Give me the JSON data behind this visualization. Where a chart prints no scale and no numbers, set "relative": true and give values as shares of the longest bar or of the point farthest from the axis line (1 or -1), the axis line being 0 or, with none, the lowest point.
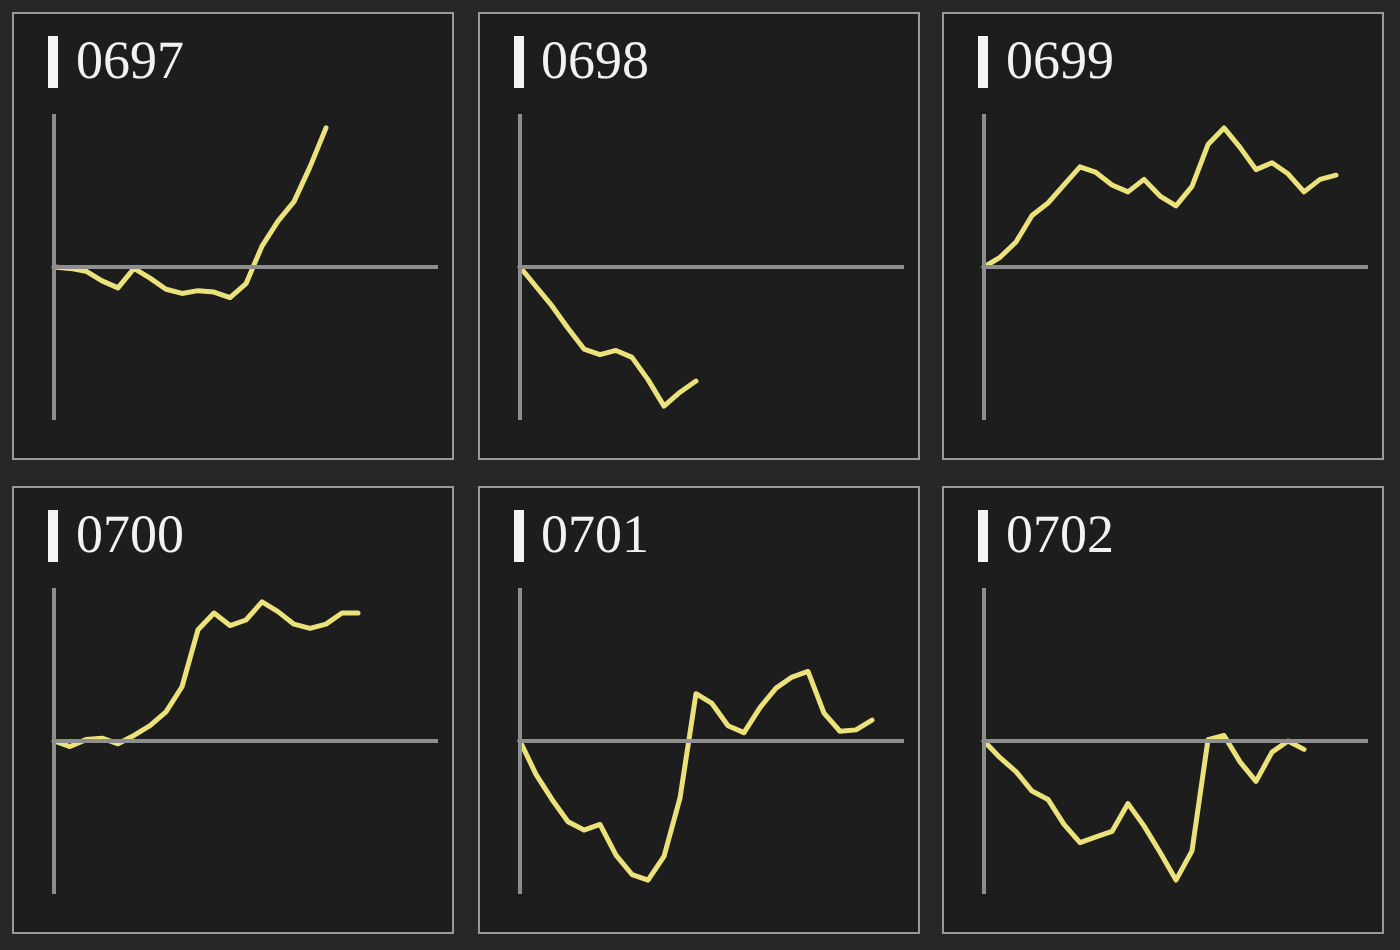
{
  "chart_data": [
    {
      "type": "line",
      "title": "0697",
      "relative": true,
      "tick_labels": false,
      "color": "#ebe27c",
      "categories": [
        null,
        null,
        null,
        null,
        null,
        null,
        null,
        null,
        null,
        null,
        null,
        null,
        null,
        null,
        null,
        null,
        null,
        null,
        null,
        null,
        null,
        null,
        null,
        null,
        null
      ],
      "values": [
        0,
        -0.01,
        -0.03,
        -0.1,
        -0.15,
        -0.01,
        -0.08,
        -0.16,
        -0.19,
        -0.17,
        -0.18,
        -0.22,
        -0.12,
        0.15,
        0.33,
        0.47,
        0.72,
        1,
        null,
        null,
        null,
        null,
        null,
        null,
        null
      ]
    },
    {
      "type": "line",
      "title": "0698",
      "relative": true,
      "tick_labels": false,
      "color": "#ebe27c",
      "categories": [
        null,
        null,
        null,
        null,
        null,
        null,
        null,
        null,
        null,
        null,
        null,
        null,
        null,
        null,
        null,
        null,
        null,
        null,
        null,
        null,
        null,
        null,
        null,
        null,
        null
      ],
      "values": [
        0,
        -0.14,
        -0.28,
        -0.44,
        -0.59,
        -0.63,
        -0.6,
        -0.65,
        -0.81,
        -1,
        -0.9,
        -0.82,
        null,
        null,
        null,
        null,
        null,
        null,
        null,
        null,
        null,
        null,
        null,
        null,
        null
      ]
    },
    {
      "type": "line",
      "title": "0699",
      "relative": true,
      "tick_labels": false,
      "color": "#ebe27c",
      "categories": [
        null,
        null,
        null,
        null,
        null,
        null,
        null,
        null,
        null,
        null,
        null,
        null,
        null,
        null,
        null,
        null,
        null,
        null,
        null,
        null,
        null,
        null,
        null,
        null,
        null
      ],
      "values": [
        0,
        0.07,
        0.18,
        0.37,
        0.46,
        0.59,
        0.72,
        0.68,
        0.59,
        0.54,
        0.63,
        0.51,
        0.44,
        0.58,
        0.88,
        1,
        0.86,
        0.7,
        0.75,
        0.67,
        0.54,
        0.63,
        0.66,
        null,
        null
      ]
    },
    {
      "type": "line",
      "title": "0700",
      "relative": true,
      "tick_labels": false,
      "color": "#ebe27c",
      "categories": [
        null,
        null,
        null,
        null,
        null,
        null,
        null,
        null,
        null,
        null,
        null,
        null,
        null,
        null,
        null,
        null,
        null,
        null,
        null,
        null,
        null,
        null,
        null,
        null,
        null
      ],
      "values": [
        0,
        -0.04,
        0.01,
        0.02,
        -0.02,
        0.04,
        0.11,
        0.21,
        0.39,
        0.8,
        0.92,
        0.83,
        0.87,
        1,
        0.93,
        0.84,
        0.81,
        0.84,
        0.92,
        0.92,
        null,
        null,
        null,
        null,
        null
      ]
    },
    {
      "type": "line",
      "title": "0701",
      "relative": true,
      "tick_labels": false,
      "color": "#ebe27c",
      "categories": [
        null,
        null,
        null,
        null,
        null,
        null,
        null,
        null,
        null,
        null,
        null,
        null,
        null,
        null,
        null,
        null,
        null,
        null,
        null,
        null,
        null,
        null,
        null,
        null,
        null
      ],
      "values": [
        0,
        -0.24,
        -0.42,
        -0.58,
        -0.64,
        -0.6,
        -0.82,
        -0.96,
        -1,
        -0.83,
        -0.41,
        0.34,
        0.27,
        0.11,
        0.06,
        0.24,
        0.38,
        0.46,
        0.5,
        0.2,
        0.07,
        0.08,
        0.15,
        null,
        null
      ]
    },
    {
      "type": "line",
      "title": "0702",
      "relative": true,
      "tick_labels": false,
      "color": "#ebe27c",
      "categories": [
        null,
        null,
        null,
        null,
        null,
        null,
        null,
        null,
        null,
        null,
        null,
        null,
        null,
        null,
        null,
        null,
        null,
        null,
        null,
        null,
        null,
        null,
        null,
        null,
        null
      ],
      "values": [
        0,
        -0.12,
        -0.22,
        -0.36,
        -0.42,
        -0.6,
        -0.73,
        -0.69,
        -0.65,
        -0.45,
        -0.61,
        -0.8,
        -1,
        -0.79,
        0.01,
        0.04,
        -0.15,
        -0.29,
        -0.08,
        0,
        -0.06,
        null,
        null,
        null,
        null
      ]
    }
  ]
}
